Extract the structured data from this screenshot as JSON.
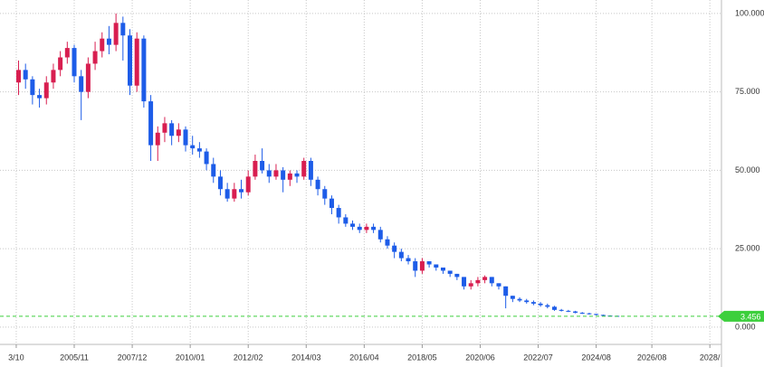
{
  "chart_data": {
    "type": "candlestick",
    "x": [
      "2003/11",
      "2004/02",
      "2004/05",
      "2004/08",
      "2004/11",
      "2005/02",
      "2005/05",
      "2005/08",
      "2005/11",
      "2006/02",
      "2006/05",
      "2006/08",
      "2006/11",
      "2007/02",
      "2007/05",
      "2007/08",
      "2007/11",
      "2008/02",
      "2008/05",
      "2008/08",
      "2008/11",
      "2009/02",
      "2009/05",
      "2009/08",
      "2009/11",
      "2010/02",
      "2010/05",
      "2010/08",
      "2010/11",
      "2011/02",
      "2011/05",
      "2011/08",
      "2011/11",
      "2012/02",
      "2012/05",
      "2012/08",
      "2012/11",
      "2013/02",
      "2013/05",
      "2013/08",
      "2013/11",
      "2014/02",
      "2014/05",
      "2014/08",
      "2014/11",
      "2015/02",
      "2015/05",
      "2015/08",
      "2015/11",
      "2016/02",
      "2016/05",
      "2016/08",
      "2016/11",
      "2017/02",
      "2017/05",
      "2017/08",
      "2017/11",
      "2018/02",
      "2018/05",
      "2018/08",
      "2018/11",
      "2019/02",
      "2019/05",
      "2019/08",
      "2019/11",
      "2020/02",
      "2020/05",
      "2020/08",
      "2020/11",
      "2021/02",
      "2021/05",
      "2021/08",
      "2021/11",
      "2022/02",
      "2022/05",
      "2022/08",
      "2022/11",
      "2023/02",
      "2023/05",
      "2023/08",
      "2023/11",
      "2024/02",
      "2024/05",
      "2024/08",
      "2024/11",
      "2025/02",
      "2025/05"
    ],
    "open": [
      78,
      82,
      79,
      74,
      73,
      78,
      82,
      86,
      89,
      80,
      75,
      84,
      88,
      92,
      90,
      97,
      93,
      77,
      92,
      72,
      58,
      62,
      65,
      61,
      63,
      58,
      57,
      56,
      52,
      48,
      44,
      41,
      44,
      43,
      48,
      53,
      50,
      48,
      50,
      47,
      49,
      48,
      53,
      47,
      44,
      41,
      38,
      35,
      33,
      32,
      31,
      32,
      31,
      28,
      26,
      24,
      22,
      21,
      18,
      21,
      20,
      19,
      18,
      17,
      16,
      13,
      14,
      15,
      16,
      14,
      13,
      10,
      9,
      8.5,
      8,
      7.5,
      7,
      6.5,
      5.5,
      5.2,
      5,
      4.6,
      4.4,
      4.2,
      3.9,
      3.7,
      3.6
    ],
    "high": [
      85,
      84,
      80,
      76,
      80,
      84,
      88,
      91,
      90,
      82,
      86,
      91,
      94,
      96,
      100,
      99,
      95,
      94,
      93,
      74,
      64,
      67,
      66,
      65,
      64,
      61,
      59,
      57,
      54,
      50,
      46,
      46,
      47,
      50,
      55,
      57,
      52,
      52,
      51,
      50,
      50,
      54,
      54,
      48,
      45,
      42,
      39,
      36,
      34,
      33,
      33,
      33,
      32,
      29,
      27,
      25,
      23,
      22,
      22,
      21,
      20,
      19,
      18,
      17,
      16,
      15,
      16,
      16.5,
      16,
      14,
      13,
      10,
      9.5,
      9,
      8.5,
      8,
      7.5,
      6.8,
      5.8,
      5.5,
      5.2,
      4.8,
      4.6,
      4.3,
      4,
      3.8,
      3.7
    ],
    "low": [
      74,
      76,
      71,
      70,
      71,
      76,
      80,
      84,
      78,
      66,
      73,
      82,
      86,
      87,
      88,
      85,
      74,
      75,
      70,
      53,
      53,
      59,
      58,
      59,
      56,
      55,
      54,
      50,
      46,
      42,
      40,
      40,
      41,
      42,
      47,
      49,
      46,
      47,
      43,
      45,
      46,
      47,
      45,
      42,
      39,
      36,
      33,
      32,
      31,
      30,
      30,
      30,
      27,
      25,
      22,
      21,
      20,
      16,
      17,
      19,
      18,
      17,
      16,
      15,
      12,
      12,
      13,
      14,
      13,
      12,
      6,
      8,
      8,
      7.5,
      7,
      6.5,
      6,
      5.2,
      5,
      4.8,
      4.4,
      4.2,
      4,
      3.8,
      3.6,
      3.5,
      3.4
    ],
    "close": [
      82,
      79,
      74,
      73,
      78,
      82,
      86,
      89,
      80,
      75,
      84,
      88,
      92,
      90,
      97,
      93,
      77,
      92,
      72,
      58,
      62,
      65,
      61,
      63,
      58,
      57,
      56,
      52,
      48,
      44,
      41,
      44,
      43,
      48,
      53,
      50,
      48,
      50,
      47,
      49,
      48,
      53,
      47,
      44,
      41,
      38,
      35,
      33,
      32,
      31,
      32,
      31,
      28,
      26,
      24,
      22,
      21,
      18,
      21,
      20,
      19,
      18,
      17,
      16,
      13,
      14,
      15,
      16,
      14,
      13,
      10,
      9,
      8.5,
      8,
      7.5,
      7,
      6.5,
      5.5,
      5.2,
      5,
      4.6,
      4.4,
      4.2,
      3.9,
      3.7,
      3.6,
      3.456
    ],
    "up_color": "#d81e50",
    "down_color": "#1d5ce8",
    "last_color": "#3ccf3c",
    "xlim": [
      "2003/03",
      "2029/02"
    ],
    "xticks": [
      {
        "value": "2003/10",
        "label": "3/10"
      },
      "2005/11",
      "2007/12",
      "2010/01",
      "2012/02",
      "2014/03",
      "2016/04",
      "2018/05",
      "2020/06",
      "2022/07",
      "2024/08",
      "2026/08",
      {
        "value": "2028/09",
        "label": "2028/"
      }
    ],
    "ylim": [
      -5.5,
      104.3
    ],
    "yticks": [
      {
        "value": 0,
        "label": "0.000"
      },
      {
        "value": 25,
        "label": "25.000"
      },
      {
        "value": 50,
        "label": "50.000"
      },
      {
        "value": 75,
        "label": "75.000"
      },
      {
        "value": 100,
        "label": "100.000"
      }
    ],
    "grid": true
  }
}
